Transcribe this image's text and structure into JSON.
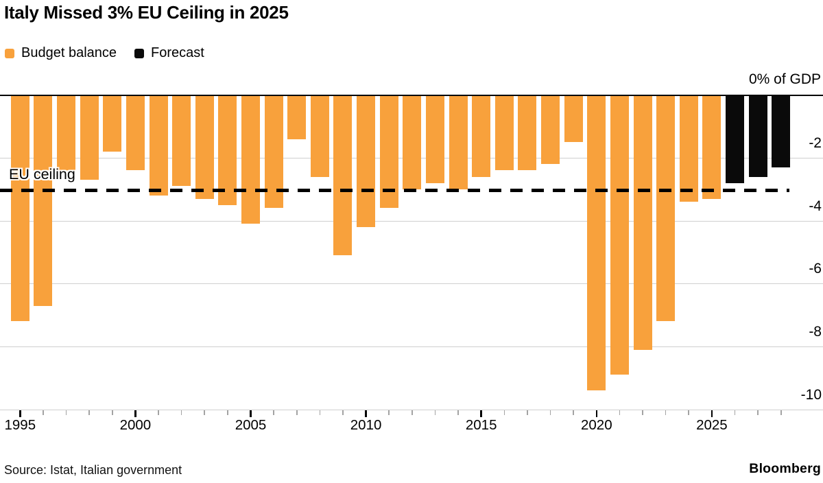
{
  "title": "Italy Missed 3% EU Ceiling in 2025",
  "legend": [
    {
      "label": "Budget balance",
      "color": "#F8A13C"
    },
    {
      "label": "Forecast",
      "color": "#0A0A0A"
    }
  ],
  "axis_top_label": "0% of GDP",
  "annotation_label": "EU ceiling",
  "source": "Source: Istat, Italian government",
  "brand": "Bloomberg",
  "colors": {
    "actual_bar": "#F8A13C",
    "forecast_bar": "#0A0A0A",
    "gridline": "#cfcfcf",
    "zero_line": "#000000",
    "ceiling_line": "#000000",
    "minor_tick": "#a3a3a3",
    "major_tick": "#000000",
    "text": "#000000"
  },
  "chart_data": {
    "type": "bar",
    "title": "Italy Missed 3% EU Ceiling in 2025",
    "unit": "% of GDP",
    "x": [
      1995,
      1996,
      1997,
      1998,
      1999,
      2000,
      2001,
      2002,
      2003,
      2004,
      2005,
      2006,
      2007,
      2008,
      2009,
      2010,
      2011,
      2012,
      2013,
      2014,
      2015,
      2016,
      2017,
      2018,
      2019,
      2020,
      2021,
      2022,
      2023,
      2024,
      2025,
      2026,
      2027,
      2028
    ],
    "values": [
      -7.2,
      -6.7,
      -2.5,
      -2.7,
      -1.8,
      -2.4,
      -3.2,
      -2.9,
      -3.3,
      -3.5,
      -4.1,
      -3.6,
      -1.4,
      -2.6,
      -5.1,
      -4.2,
      -3.6,
      -3.0,
      -2.8,
      -3.0,
      -2.6,
      -2.4,
      -2.4,
      -2.2,
      -1.5,
      -9.4,
      -8.9,
      -8.1,
      -7.2,
      -3.4,
      -3.3,
      -2.8,
      -2.6,
      -2.3
    ],
    "series_split": {
      "actual_years": "1995-2025",
      "forecast_years": "2026-2028"
    },
    "forecast_start_year": 2026,
    "eu_ceiling_value": -3,
    "ylim": [
      -10.3,
      0
    ],
    "yticks": [
      -2,
      -4,
      -6,
      -8,
      -10
    ],
    "xticks_minor_every": 1,
    "xticks_major": [
      1995,
      2000,
      2005,
      2010,
      2015,
      2020,
      2025
    ],
    "grid": true,
    "legend_position": "top-left",
    "value_axis_side": "right"
  }
}
